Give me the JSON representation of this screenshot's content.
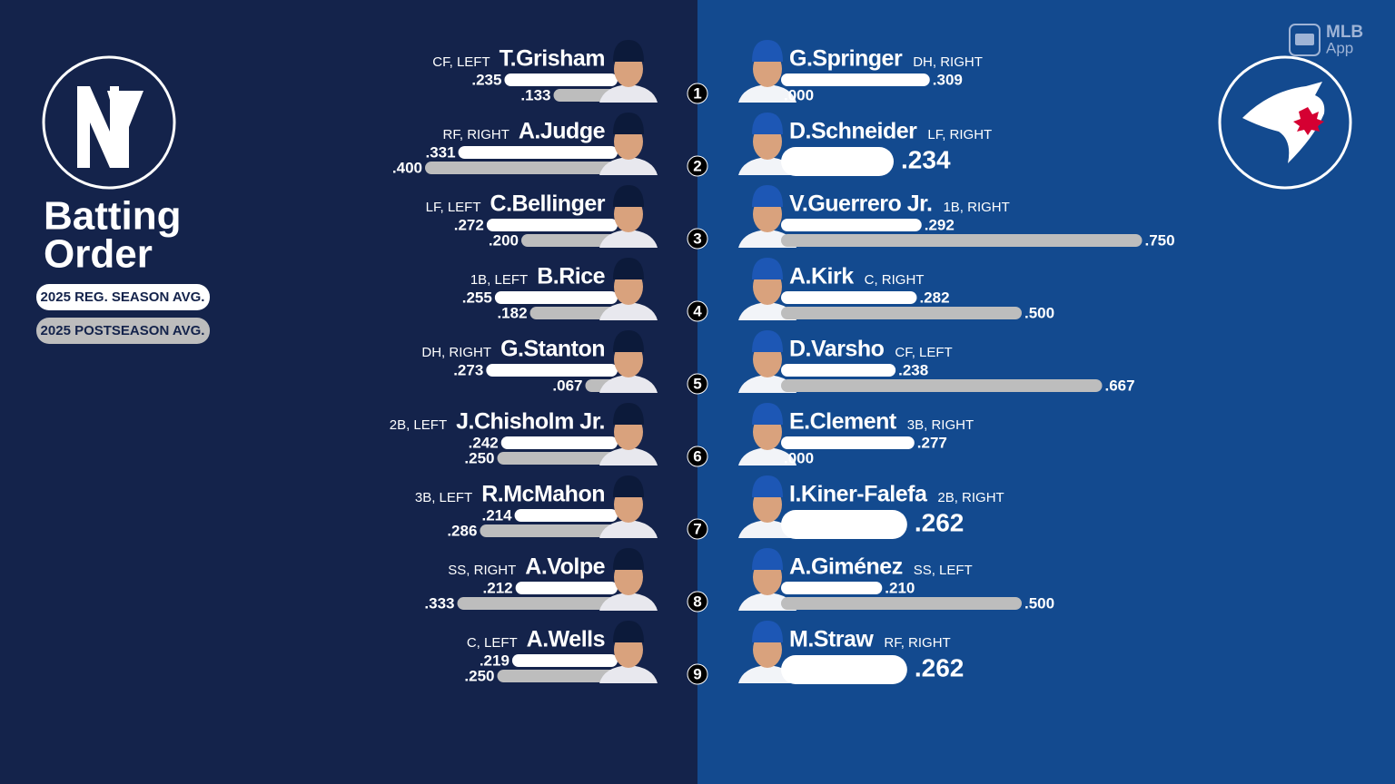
{
  "header": {
    "title": [
      "Batting",
      "Order"
    ],
    "legend": [
      "2025 REG. SEASON AVG.",
      "2025 POSTSEASON AVG."
    ],
    "brand": [
      "MLB",
      "App"
    ]
  },
  "slots": [
    1,
    2,
    3,
    4,
    5,
    6,
    7,
    8,
    9
  ],
  "lineups": [
    {
      "players": [
        {
          "name": "T.Grisham",
          "position": "CF, LEFT",
          "season_avg": 0.235,
          "season_label": ".235",
          "post_avg": 0.133,
          "post_label": ".133"
        },
        {
          "name": "A.Judge",
          "position": "RF, RIGHT",
          "season_avg": 0.331,
          "season_label": ".331",
          "post_avg": 0.4,
          "post_label": ".400"
        },
        {
          "name": "C.Bellinger",
          "position": "LF, LEFT",
          "season_avg": 0.272,
          "season_label": ".272",
          "post_avg": 0.2,
          "post_label": ".200"
        },
        {
          "name": "B.Rice",
          "position": "1B, LEFT",
          "season_avg": 0.255,
          "season_label": ".255",
          "post_avg": 0.182,
          "post_label": ".182"
        },
        {
          "name": "G.Stanton",
          "position": "DH, RIGHT",
          "season_avg": 0.273,
          "season_label": ".273",
          "post_avg": 0.067,
          "post_label": ".067"
        },
        {
          "name": "J.Chisholm Jr.",
          "position": "2B, LEFT",
          "season_avg": 0.242,
          "season_label": ".242",
          "post_avg": 0.25,
          "post_label": ".250"
        },
        {
          "name": "R.McMahon",
          "position": "3B, LEFT",
          "season_avg": 0.214,
          "season_label": ".214",
          "post_avg": 0.286,
          "post_label": ".286"
        },
        {
          "name": "A.Volpe",
          "position": "SS, RIGHT",
          "season_avg": 0.212,
          "season_label": ".212",
          "post_avg": 0.333,
          "post_label": ".333"
        },
        {
          "name": "A.Wells",
          "position": "C, LEFT",
          "season_avg": 0.219,
          "season_label": ".219",
          "post_avg": 0.25,
          "post_label": ".250"
        }
      ]
    },
    {
      "players": [
        {
          "name": "G.Springer",
          "position": "DH, RIGHT",
          "season_avg": 0.309,
          "season_label": ".309",
          "post_avg": 0,
          "post_label": ".000"
        },
        {
          "name": "D.Schneider",
          "position": "LF, RIGHT",
          "season_avg": 0.234,
          "season_label": ".234",
          "post_avg": null,
          "post_label": null
        },
        {
          "name": "V.Guerrero Jr.",
          "position": "1B, RIGHT",
          "season_avg": 0.292,
          "season_label": ".292",
          "post_avg": 0.75,
          "post_label": ".750"
        },
        {
          "name": "A.Kirk",
          "position": "C, RIGHT",
          "season_avg": 0.282,
          "season_label": ".282",
          "post_avg": 0.5,
          "post_label": ".500"
        },
        {
          "name": "D.Varsho",
          "position": "CF, LEFT",
          "season_avg": 0.238,
          "season_label": ".238",
          "post_avg": 0.667,
          "post_label": ".667"
        },
        {
          "name": "E.Clement",
          "position": "3B, RIGHT",
          "season_avg": 0.277,
          "season_label": ".277",
          "post_avg": 0,
          "post_label": ".000"
        },
        {
          "name": "I.Kiner-Falefa",
          "position": "2B, RIGHT",
          "season_avg": 0.262,
          "season_label": ".262",
          "post_avg": null,
          "post_label": null
        },
        {
          "name": "A.Giménez",
          "position": "SS, LEFT",
          "season_avg": 0.21,
          "season_label": ".210",
          "post_avg": 0.5,
          "post_label": ".500"
        },
        {
          "name": "M.Straw",
          "position": "RF, RIGHT",
          "season_avg": 0.262,
          "season_label": ".262",
          "post_avg": null,
          "post_label": null
        }
      ]
    }
  ]
}
